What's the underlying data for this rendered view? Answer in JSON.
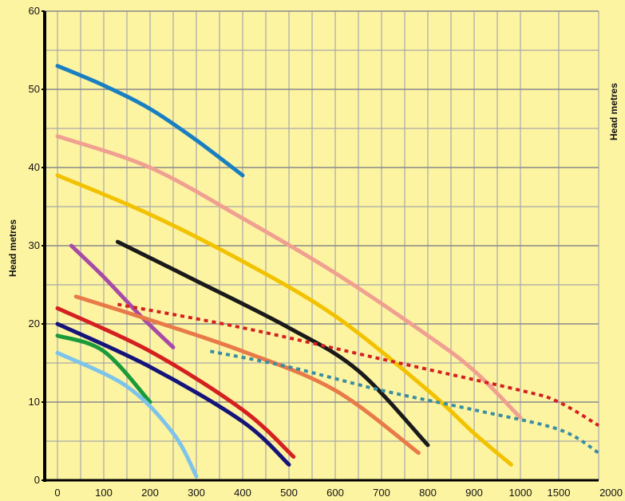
{
  "chart_data": {
    "type": "line",
    "title": "",
    "xlabel": "",
    "ylabel": "Head metres",
    "ylabel_right": "Head metres",
    "ylim": [
      0,
      60
    ],
    "y_ticks": [
      "0",
      "10",
      "20",
      "30",
      "40",
      "50",
      "60"
    ],
    "x_ticks": [
      "0",
      "100",
      "200",
      "300",
      "400",
      "500",
      "600",
      "700",
      "800",
      "900",
      "1000",
      "1500",
      "2000"
    ],
    "grid": true,
    "series": [
      {
        "color": "#1a7fc1",
        "style": "solid",
        "x": [
          0,
          100,
          200,
          300,
          400
        ],
        "y": [
          53,
          50.5,
          47.5,
          43.5,
          39
        ]
      },
      {
        "color": "#f0a090",
        "style": "solid",
        "x": [
          0,
          200,
          400,
          600,
          800,
          900,
          1000
        ],
        "y": [
          44,
          40,
          33.5,
          26.5,
          18.5,
          14,
          8
        ]
      },
      {
        "color": "#f2c200",
        "style": "solid",
        "x": [
          0,
          200,
          400,
          600,
          800,
          900,
          980
        ],
        "y": [
          39,
          34,
          28,
          21,
          11.5,
          6,
          2
        ]
      },
      {
        "color": "#1a1a1a",
        "style": "solid",
        "x": [
          130,
          300,
          500,
          650,
          800
        ],
        "y": [
          30.5,
          25.5,
          19.5,
          14,
          4.5
        ]
      },
      {
        "color": "#a64ca6",
        "style": "solid",
        "x": [
          30,
          100,
          180,
          250
        ],
        "y": [
          30,
          26,
          21,
          17
        ]
      },
      {
        "color": "#e87a4a",
        "style": "solid",
        "x": [
          40,
          200,
          400,
          600,
          780
        ],
        "y": [
          23.5,
          20.5,
          16.5,
          11.5,
          3.5
        ]
      },
      {
        "color": "#d42020",
        "style": "solid",
        "x": [
          0,
          200,
          400,
          510
        ],
        "y": [
          22,
          16.5,
          9,
          3
        ]
      },
      {
        "color": "#14147a",
        "style": "solid",
        "x": [
          0,
          200,
          400,
          500
        ],
        "y": [
          20,
          14.5,
          7.5,
          2
        ]
      },
      {
        "color": "#1a9a3a",
        "style": "solid",
        "x": [
          0,
          100,
          200
        ],
        "y": [
          18.5,
          16.5,
          10
        ]
      },
      {
        "color": "#7ec4ea",
        "style": "solid",
        "x": [
          0,
          150,
          250,
          300
        ],
        "y": [
          16.3,
          12,
          6,
          0.5
        ]
      },
      {
        "color": "#d42020",
        "style": "dotted",
        "x": [
          130,
          400,
          700,
          1000,
          1500,
          2000
        ],
        "y": [
          22.5,
          19.5,
          15.5,
          11.5,
          10,
          7
        ]
      },
      {
        "color": "#3a8ea0",
        "style": "dotted",
        "x": [
          330,
          500,
          700,
          900,
          1500,
          2000
        ],
        "y": [
          16.5,
          14.5,
          11.5,
          9,
          6.5,
          3.5
        ]
      }
    ]
  }
}
